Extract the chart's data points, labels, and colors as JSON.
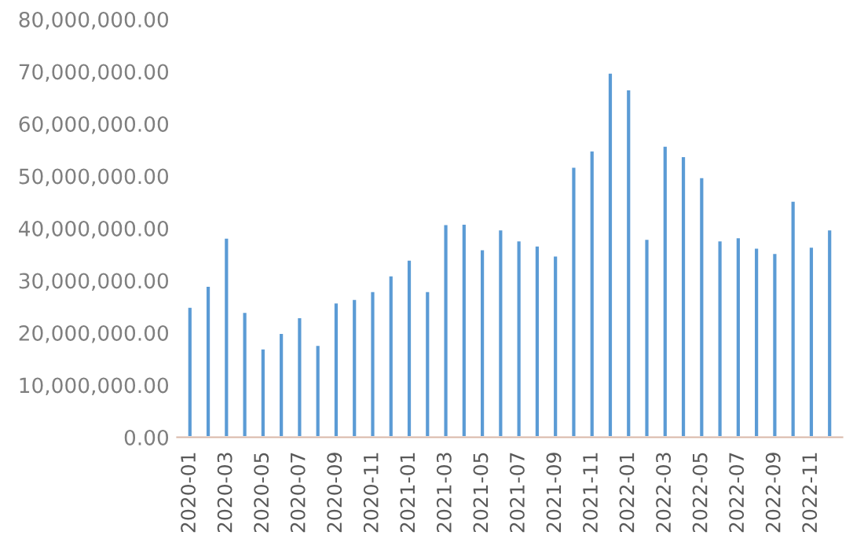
{
  "chart_data": {
    "type": "bar",
    "categories": [
      "2020-01",
      null,
      "2020-03",
      null,
      "2020-05",
      null,
      "2020-07",
      null,
      "2020-09",
      null,
      "2020-11",
      null,
      "2021-01",
      null,
      "2021-03",
      null,
      "2021-05",
      null,
      "2021-07",
      null,
      "2021-09",
      null,
      "2021-11",
      null,
      "2022-01",
      null,
      "2022-03",
      null,
      "2022-05",
      null,
      "2022-07",
      null,
      "2022-09",
      null,
      "2022-11",
      null
    ],
    "values": [
      25000000,
      29000000,
      38200000,
      24000000,
      17000000,
      20000000,
      23000000,
      17700000,
      25800000,
      26500000,
      28000000,
      31000000,
      34000000,
      28000000,
      40800000,
      40900000,
      36000000,
      39800000,
      37700000,
      36700000,
      34800000,
      51800000,
      54900000,
      69800000,
      66600000,
      38000000,
      55800000,
      53800000,
      49800000,
      37700000,
      38300000,
      36300000,
      35300000,
      45300000,
      36500000,
      39800000
    ],
    "color": "#5b9bd5",
    "ylim": [
      0,
      80000000
    ],
    "yticks": [
      {
        "value": 0,
        "label": "0.00"
      },
      {
        "value": 10000000,
        "label": "10,000,000.00"
      },
      {
        "value": 20000000,
        "label": "20,000,000.00"
      },
      {
        "value": 30000000,
        "label": "30,000,000.00"
      },
      {
        "value": 40000000,
        "label": "40,000,000.00"
      },
      {
        "value": 50000000,
        "label": "50,000,000.00"
      },
      {
        "value": 60000000,
        "label": "60,000,000.00"
      },
      {
        "value": 70000000,
        "label": "70,000,000.00"
      },
      {
        "value": 80000000,
        "label": "80,000,000.00"
      }
    ],
    "grid": false
  }
}
